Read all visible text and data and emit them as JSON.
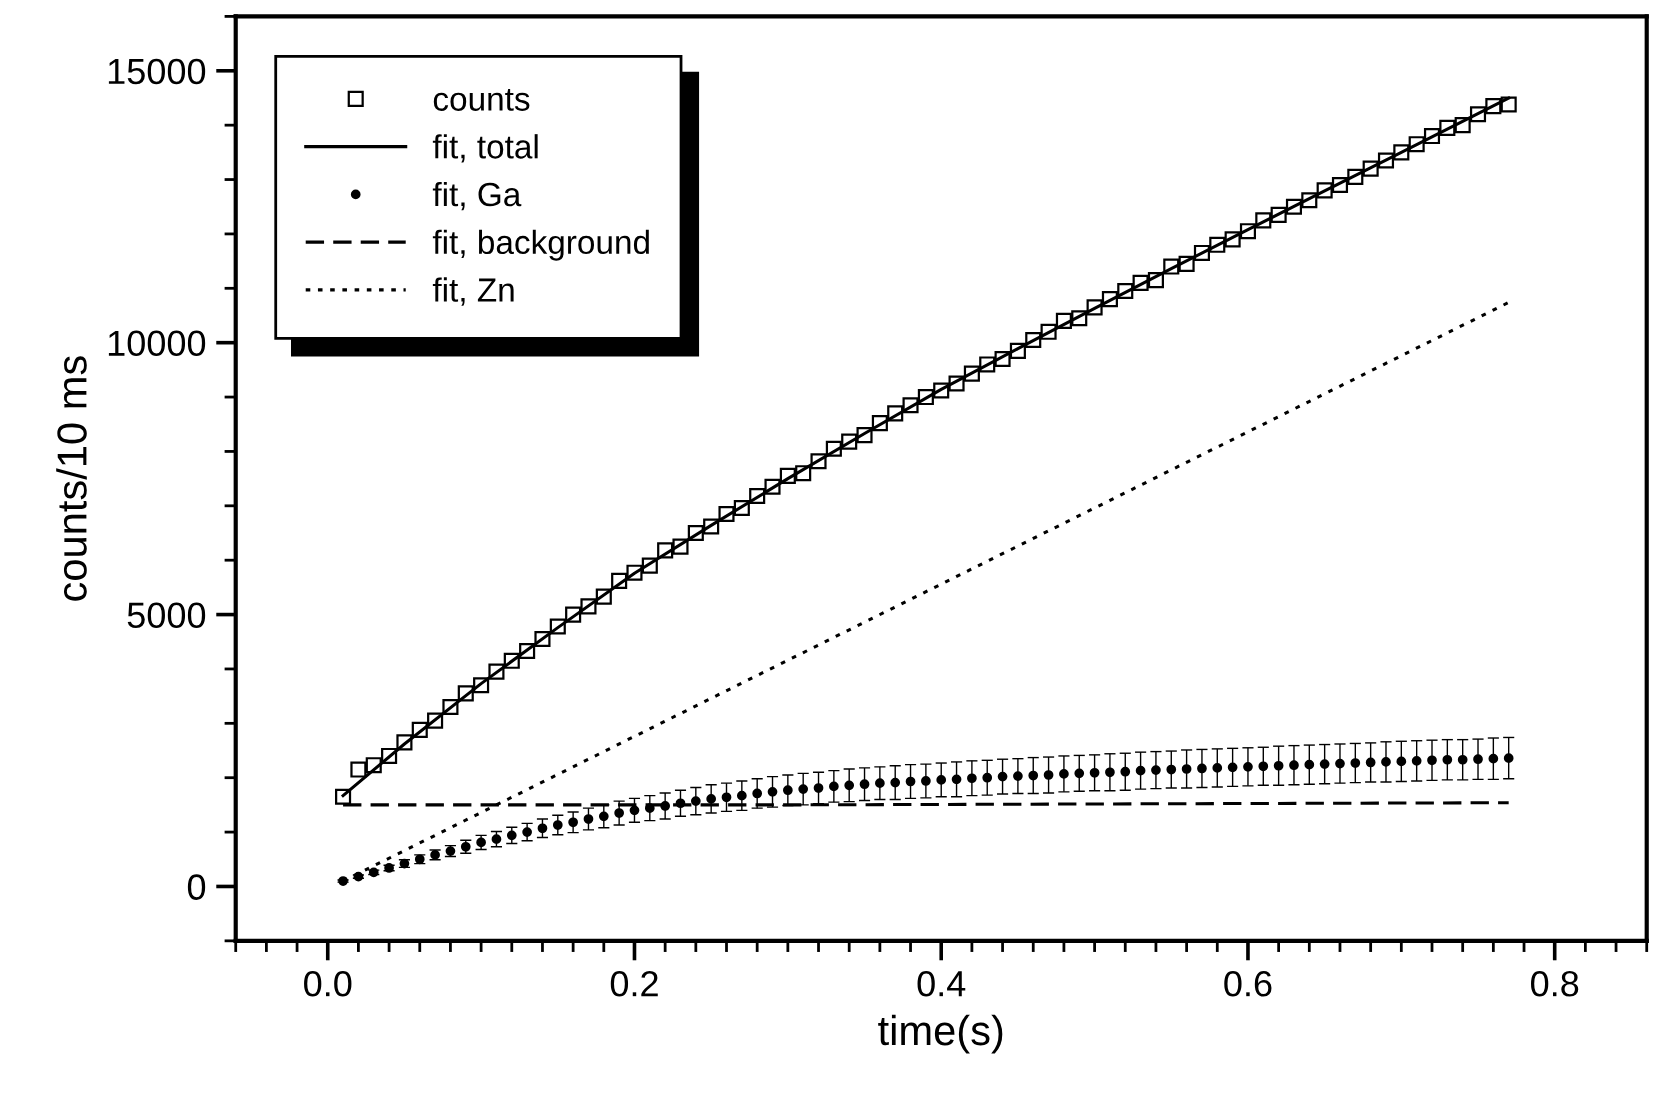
{
  "chart_data": {
    "type": "line",
    "xlabel": "time(s)",
    "ylabel": "counts/10 ms",
    "xlim": [
      -0.06,
      0.86
    ],
    "ylim": [
      -1000,
      16000
    ],
    "xticks": [
      {
        "value": 0,
        "label": "0.0"
      },
      {
        "value": 0.2,
        "label": "0.2"
      },
      {
        "value": 0.4,
        "label": "0.4"
      },
      {
        "value": 0.6,
        "label": "0.6"
      },
      {
        "value": 0.8,
        "label": "0.8"
      }
    ],
    "yticks": [
      0,
      5000,
      10000,
      15000
    ],
    "grid": false,
    "legend": "top left",
    "series": [
      {
        "name": "counts",
        "type": "scatter",
        "marker": "square",
        "color": "#000000",
        "x": [
          0.01,
          0.02,
          0.03,
          0.04,
          0.05,
          0.06,
          0.07,
          0.08,
          0.09,
          0.1,
          0.11,
          0.12,
          0.13,
          0.14,
          0.15,
          0.16,
          0.17,
          0.18,
          0.19,
          0.2,
          0.21,
          0.22,
          0.23,
          0.24,
          0.25,
          0.26,
          0.27,
          0.28,
          0.29,
          0.3,
          0.31,
          0.32,
          0.33,
          0.34,
          0.35,
          0.36,
          0.37,
          0.38,
          0.39,
          0.4,
          0.41,
          0.42,
          0.43,
          0.44,
          0.45,
          0.46,
          0.47,
          0.48,
          0.49,
          0.5,
          0.51,
          0.52,
          0.53,
          0.54,
          0.55,
          0.56,
          0.57,
          0.58,
          0.59,
          0.6,
          0.61,
          0.62,
          0.63,
          0.64,
          0.65,
          0.66,
          0.67,
          0.68,
          0.69,
          0.7,
          0.71,
          0.72,
          0.73,
          0.74,
          0.75,
          0.76,
          0.77
        ],
        "values": [
          1650,
          2150,
          2230,
          2400,
          2650,
          2880,
          3050,
          3300,
          3550,
          3700,
          3950,
          4150,
          4330,
          4550,
          4780,
          5000,
          5150,
          5330,
          5620,
          5770,
          5900,
          6180,
          6250,
          6500,
          6620,
          6850,
          6960,
          7180,
          7350,
          7550,
          7600,
          7820,
          8050,
          8180,
          8300,
          8520,
          8700,
          8850,
          9000,
          9120,
          9250,
          9430,
          9600,
          9700,
          9850,
          10050,
          10200,
          10400,
          10450,
          10650,
          10800,
          10950,
          11100,
          11150,
          11400,
          11450,
          11650,
          11800,
          11900,
          12050,
          12250,
          12350,
          12500,
          12620,
          12800,
          12900,
          13050,
          13200,
          13350,
          13500,
          13650,
          13800,
          13950,
          14000,
          14200,
          14350,
          14380
        ]
      },
      {
        "name": "fit, total",
        "line_style": "solid",
        "color": "#000000",
        "x": [
          0.01,
          0.05,
          0.1,
          0.15,
          0.2,
          0.25,
          0.3,
          0.35,
          0.4,
          0.45,
          0.5,
          0.55,
          0.6,
          0.65,
          0.7,
          0.77
        ],
        "values": [
          1670,
          2620,
          3730,
          4760,
          5760,
          6640,
          7500,
          8330,
          9140,
          9890,
          10630,
          11360,
          12080,
          12790,
          13500,
          14500
        ]
      },
      {
        "name": "fit, Ga",
        "type": "scatter",
        "marker": "circle",
        "color": "#000000",
        "x": [
          0.01,
          0.02,
          0.03,
          0.04,
          0.05,
          0.06,
          0.07,
          0.08,
          0.09,
          0.1,
          0.11,
          0.12,
          0.13,
          0.14,
          0.15,
          0.16,
          0.17,
          0.18,
          0.19,
          0.2,
          0.21,
          0.22,
          0.23,
          0.24,
          0.25,
          0.26,
          0.27,
          0.28,
          0.29,
          0.3,
          0.31,
          0.32,
          0.33,
          0.34,
          0.35,
          0.36,
          0.37,
          0.38,
          0.39,
          0.4,
          0.41,
          0.42,
          0.43,
          0.44,
          0.45,
          0.46,
          0.47,
          0.48,
          0.49,
          0.5,
          0.51,
          0.52,
          0.53,
          0.54,
          0.55,
          0.56,
          0.57,
          0.58,
          0.59,
          0.6,
          0.61,
          0.62,
          0.63,
          0.64,
          0.65,
          0.66,
          0.67,
          0.68,
          0.69,
          0.7,
          0.71,
          0.72,
          0.73,
          0.74,
          0.75,
          0.76,
          0.77
        ],
        "values": [
          100,
          180,
          260,
          340,
          420,
          500,
          580,
          650,
          730,
          810,
          870,
          940,
          1000,
          1070,
          1130,
          1180,
          1240,
          1290,
          1350,
          1400,
          1440,
          1480,
          1530,
          1570,
          1610,
          1640,
          1670,
          1710,
          1740,
          1770,
          1790,
          1810,
          1840,
          1860,
          1880,
          1900,
          1910,
          1930,
          1940,
          1960,
          1970,
          1990,
          2000,
          2020,
          2030,
          2040,
          2050,
          2070,
          2080,
          2090,
          2100,
          2110,
          2130,
          2140,
          2150,
          2160,
          2170,
          2180,
          2190,
          2200,
          2210,
          2220,
          2230,
          2240,
          2250,
          2260,
          2270,
          2280,
          2290,
          2300,
          2310,
          2320,
          2330,
          2330,
          2340,
          2350,
          2360
        ],
        "errors": [
          20,
          30,
          40,
          50,
          70,
          80,
          90,
          100,
          120,
          130,
          140,
          150,
          160,
          170,
          180,
          190,
          200,
          210,
          220,
          220,
          230,
          240,
          240,
          250,
          260,
          260,
          270,
          270,
          280,
          280,
          290,
          290,
          290,
          300,
          300,
          300,
          310,
          310,
          310,
          310,
          320,
          320,
          320,
          320,
          320,
          330,
          330,
          330,
          330,
          330,
          340,
          340,
          340,
          340,
          340,
          350,
          350,
          350,
          350,
          350,
          350,
          360,
          360,
          360,
          360,
          360,
          360,
          360,
          370,
          370,
          370,
          370,
          370,
          370,
          370,
          380,
          380
        ]
      },
      {
        "name": "fit, background",
        "line_style": "dashed",
        "color": "#000000",
        "x": [
          0.01,
          0.3,
          0.77
        ],
        "values": [
          1500,
          1500,
          1540
        ]
      },
      {
        "name": "fit, Zn",
        "line_style": "dotted",
        "color": "#000000",
        "x": [
          0.01,
          0.77
        ],
        "values": [
          100,
          10740
        ]
      }
    ]
  }
}
